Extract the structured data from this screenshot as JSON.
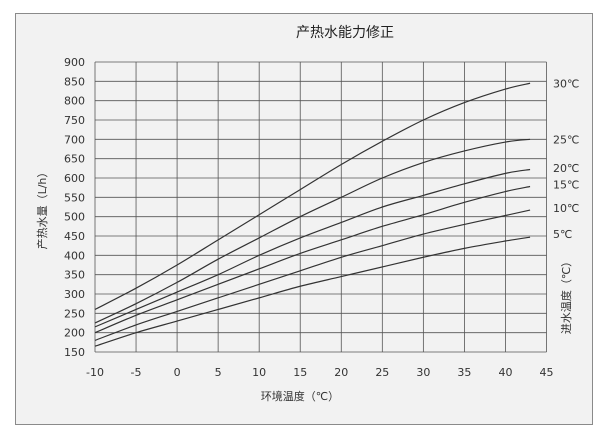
{
  "chart_data": {
    "type": "line",
    "title": "产热水能力修正",
    "xlabel": "环境温度（℃）",
    "ylabel": "产热水量（L/h）",
    "right_label": "进水温度（℃）",
    "xlim": [
      -10,
      45
    ],
    "ylim": [
      150,
      900
    ],
    "xticks": [
      -10,
      -5,
      0,
      5,
      10,
      15,
      20,
      25,
      30,
      35,
      40,
      45
    ],
    "yticks": [
      150,
      200,
      250,
      300,
      350,
      400,
      450,
      500,
      550,
      600,
      650,
      700,
      750,
      800,
      850,
      900
    ],
    "grid": true,
    "x": [
      -10,
      -5,
      0,
      5,
      10,
      15,
      20,
      25,
      30,
      35,
      40,
      43
    ],
    "series": [
      {
        "name": "30℃",
        "values": [
          260,
          315,
          375,
          440,
          505,
          570,
          635,
          695,
          750,
          795,
          830,
          845
        ]
      },
      {
        "name": "25℃",
        "values": [
          225,
          275,
          330,
          390,
          445,
          500,
          550,
          600,
          640,
          670,
          693,
          700
        ]
      },
      {
        "name": "20℃",
        "values": [
          215,
          260,
          305,
          350,
          400,
          445,
          485,
          525,
          555,
          585,
          612,
          622
        ]
      },
      {
        "name": "15℃",
        "values": [
          200,
          245,
          285,
          325,
          365,
          405,
          440,
          475,
          505,
          537,
          565,
          578
        ]
      },
      {
        "name": "10℃",
        "values": [
          180,
          220,
          255,
          290,
          325,
          360,
          395,
          425,
          455,
          480,
          503,
          517
        ]
      },
      {
        "name": "5℃",
        "values": [
          165,
          200,
          230,
          260,
          290,
          320,
          345,
          370,
          395,
          418,
          437,
          447
        ]
      }
    ],
    "line_color": "#333333",
    "grid_color": "#555555",
    "background": "#f2f2f2"
  }
}
